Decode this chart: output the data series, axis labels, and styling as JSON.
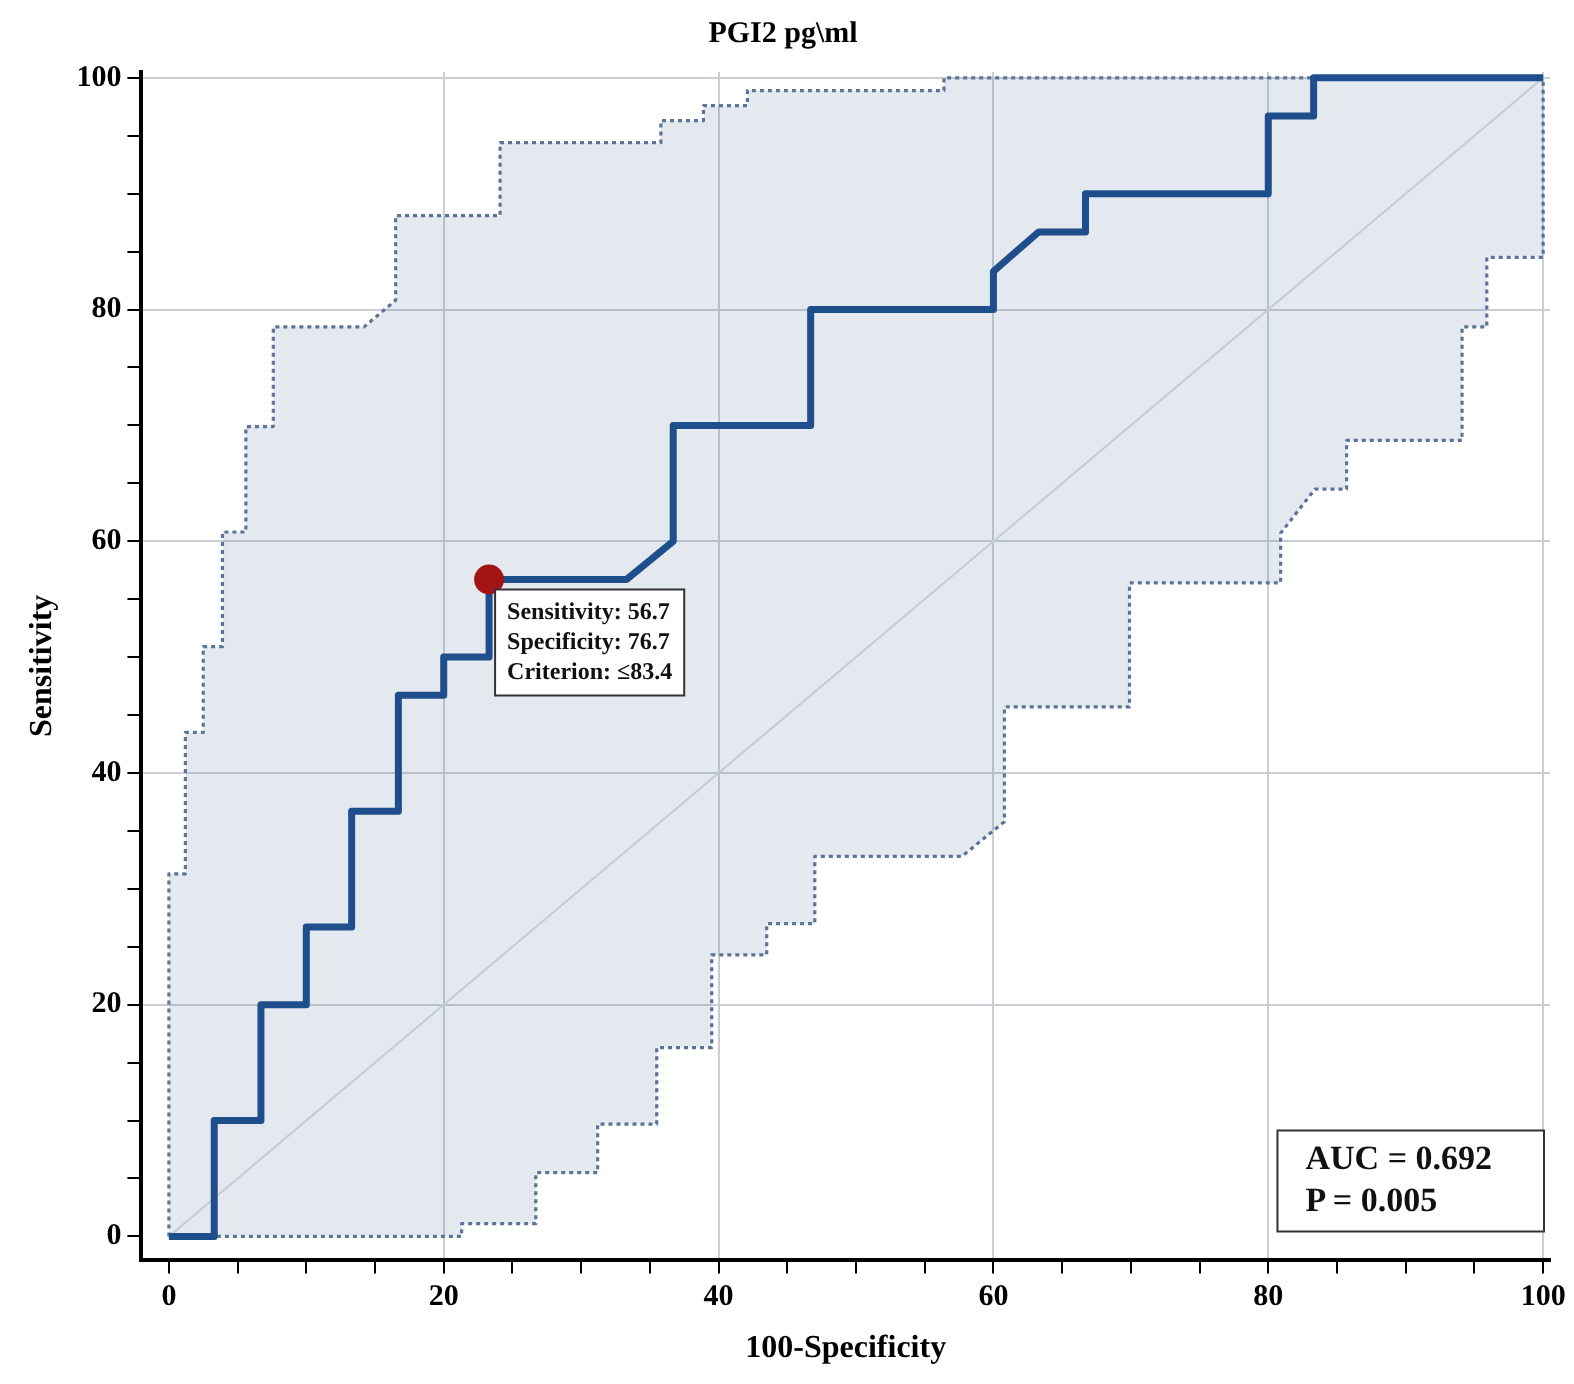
{
  "chart_data": {
    "type": "line",
    "title": "PGI2 pg\\ml",
    "xlabel": "100-Specificity",
    "ylabel": "Sensitivity",
    "xlim": [
      -2,
      100.5
    ],
    "ylim": [
      -2,
      100.5
    ],
    "xticks": [
      0,
      {
        "value": 5,
        "label": null
      },
      {
        "value": 10,
        "label": null
      },
      {
        "value": 15,
        "label": null
      },
      20,
      {
        "value": 25,
        "label": null
      },
      {
        "value": 30,
        "label": null
      },
      {
        "value": 35,
        "label": null
      },
      40,
      {
        "value": 45,
        "label": null
      },
      {
        "value": 50,
        "label": null
      },
      {
        "value": 55,
        "label": null
      },
      60,
      {
        "value": 65,
        "label": null
      },
      {
        "value": 70,
        "label": null
      },
      {
        "value": 75,
        "label": null
      },
      80,
      {
        "value": 85,
        "label": null
      },
      {
        "value": 90,
        "label": null
      },
      {
        "value": 95,
        "label": null
      },
      100
    ],
    "yticks": [
      0,
      {
        "value": 5,
        "label": null
      },
      {
        "value": 10,
        "label": null
      },
      {
        "value": 15,
        "label": null
      },
      20,
      {
        "value": 25,
        "label": null
      },
      {
        "value": 30,
        "label": null
      },
      {
        "value": 35,
        "label": null
      },
      40,
      {
        "value": 45,
        "label": null
      },
      {
        "value": 50,
        "label": null
      },
      {
        "value": 55,
        "label": null
      },
      60,
      {
        "value": 65,
        "label": null
      },
      {
        "value": 70,
        "label": null
      },
      {
        "value": 75,
        "label": null
      },
      80,
      {
        "value": 85,
        "label": null
      },
      {
        "value": 90,
        "label": null
      },
      {
        "value": 95,
        "label": null
      },
      100
    ],
    "grid": true,
    "legend": false,
    "marker": "none",
    "series": [
      {
        "color": "#5a7499",
        "line_style": "dotted",
        "x": [
          0,
          0,
          1.2,
          1.2,
          2.5,
          2.5,
          3.9,
          3.9,
          5.6,
          5.6,
          7.6,
          7.6,
          14.2,
          16.5,
          16.5,
          21.3,
          21.3,
          24.1,
          24.1,
          26.7,
          26.7,
          31.2,
          31.2,
          35.5,
          35.5,
          35.8,
          35.8,
          38.9,
          38.9,
          39.5,
          39.5,
          42.1,
          42.1,
          43.5,
          43.5,
          47,
          47,
          56.4,
          56.4,
          57.7,
          60.8,
          60.8,
          69.9,
          69.9,
          80.9,
          80.9,
          83.4,
          85.7,
          85.7,
          94.1,
          94.1,
          95.9,
          95.9,
          100,
          100
        ],
        "values": [
          0,
          31.3,
          31.3,
          43.5,
          43.5,
          50.9,
          50.9,
          60.8,
          60.8,
          69.9,
          69.9,
          78.5,
          78.5,
          80.8,
          88.1,
          88.1,
          88.1,
          88.1,
          94.4,
          94.4,
          94.4,
          94.4,
          94.4,
          94.4,
          94.4,
          94.4,
          96.3,
          96.3,
          97.6,
          97.6,
          97.6,
          97.6,
          98.9,
          98.9,
          98.9,
          98.9,
          98.9,
          98.9,
          100,
          100,
          100,
          100,
          100,
          100,
          100,
          100,
          100,
          100,
          100,
          100,
          100,
          100,
          100,
          100,
          100
        ],
        "lower": [
          0,
          0,
          0,
          0,
          0,
          0,
          0,
          0,
          0,
          0,
          0,
          0,
          0,
          0,
          0,
          0,
          1.1,
          1.1,
          1.1,
          1.1,
          5.5,
          5.5,
          9.7,
          9.7,
          16.3,
          16.3,
          16.3,
          16.3,
          16.3,
          16.3,
          24.3,
          24.3,
          24.3,
          24.3,
          27,
          27,
          32.8,
          32.8,
          32.8,
          32.8,
          35.8,
          45.7,
          45.7,
          56.4,
          56.4,
          60.7,
          64.5,
          64.5,
          68.7,
          68.7,
          78.5,
          78.5,
          84.5,
          84.5,
          100
        ],
        "upper": [
          0,
          31.3,
          31.3,
          43.5,
          43.5,
          50.9,
          50.9,
          60.8,
          60.8,
          69.9,
          69.9,
          78.5,
          78.5,
          80.8,
          88.1,
          88.1,
          88.1,
          88.1,
          94.4,
          94.4,
          94.4,
          94.4,
          94.4,
          94.4,
          94.4,
          94.4,
          96.3,
          96.3,
          97.6,
          97.6,
          97.6,
          97.6,
          98.9,
          98.9,
          98.9,
          98.9,
          98.9,
          98.9,
          100,
          100,
          100,
          100,
          100,
          100,
          100,
          100,
          100,
          100,
          100,
          100,
          100,
          100,
          100,
          100,
          100
        ]
      },
      {
        "color": "#5a7499",
        "line_style": "dotted",
        "x": [
          0,
          21.3,
          21.3,
          26.7,
          26.7,
          31.2,
          31.2,
          35.5,
          35.5,
          39.5,
          39.5,
          43.5,
          43.5,
          47,
          47,
          57.7,
          60.8,
          60.8,
          69.9,
          69.9,
          80.9,
          80.9,
          83.4,
          85.7,
          85.7,
          94.1,
          94.1,
          95.9,
          95.9,
          100,
          100
        ],
        "values": [
          0,
          0,
          1.1,
          1.1,
          5.5,
          5.5,
          9.7,
          9.7,
          16.3,
          16.3,
          24.3,
          24.3,
          27,
          27,
          32.8,
          32.8,
          35.8,
          45.7,
          45.7,
          56.4,
          56.4,
          60.7,
          64.5,
          64.5,
          68.7,
          68.7,
          78.5,
          78.5,
          84.5,
          84.5,
          100
        ]
      },
      {
        "color": "#c5cbd6",
        "line_style": "solid",
        "x": [
          0,
          100
        ],
        "values": [
          0,
          100
        ]
      },
      {
        "color": "#1f4e8c",
        "line_style": "solid",
        "x": [
          0,
          3.3,
          3.3,
          6.7,
          6.7,
          10,
          10,
          13.3,
          13.3,
          16.7,
          16.7,
          20,
          20,
          23.3,
          23.3,
          33.3,
          36.7,
          36.7,
          46.7,
          46.7,
          60,
          60,
          63.3,
          66.7,
          66.7,
          80,
          80,
          83.3,
          83.3,
          100
        ],
        "values": [
          0,
          0,
          10,
          10,
          20,
          20,
          26.7,
          26.7,
          36.7,
          36.7,
          46.7,
          46.7,
          50,
          50,
          56.7,
          56.7,
          60,
          70,
          70,
          80,
          80,
          83.3,
          86.7,
          86.7,
          90,
          90,
          96.7,
          96.7,
          100,
          100
        ]
      },
      {
        "type": "scatter",
        "color": "#a31515",
        "marker": "circle",
        "x": [
          23.3
        ],
        "values": [
          56.7
        ]
      }
    ],
    "annotations": [
      {
        "text": "Sensitivity: 56.7\nSpecificity: 76.7\nCriterion: ≤83.4",
        "x": 23.3,
        "y": 56.7
      },
      "AUC = 0.692\nP = 0.005"
    ]
  }
}
